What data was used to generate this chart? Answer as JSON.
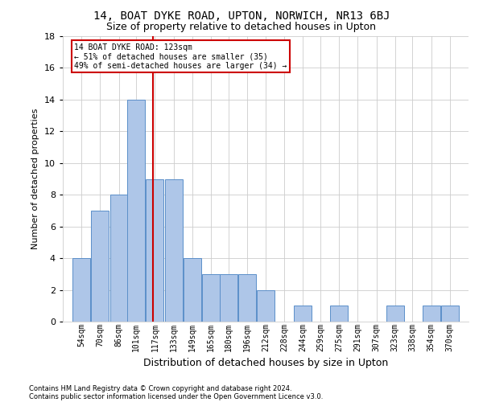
{
  "title1": "14, BOAT DYKE ROAD, UPTON, NORWICH, NR13 6BJ",
  "title2": "Size of property relative to detached houses in Upton",
  "xlabel": "Distribution of detached houses by size in Upton",
  "ylabel": "Number of detached properties",
  "footnote1": "Contains HM Land Registry data © Crown copyright and database right 2024.",
  "footnote2": "Contains public sector information licensed under the Open Government Licence v3.0.",
  "annotation_line1": "14 BOAT DYKE ROAD: 123sqm",
  "annotation_line2": "← 51% of detached houses are smaller (35)",
  "annotation_line3": "49% of semi-detached houses are larger (34) →",
  "property_size": 123,
  "categories": [
    "54sqm",
    "70sqm",
    "86sqm",
    "101sqm",
    "117sqm",
    "133sqm",
    "149sqm",
    "165sqm",
    "180sqm",
    "196sqm",
    "212sqm",
    "228sqm",
    "244sqm",
    "259sqm",
    "275sqm",
    "291sqm",
    "307sqm",
    "323sqm",
    "338sqm",
    "354sqm",
    "370sqm"
  ],
  "bar_values": [
    4,
    7,
    8,
    14,
    9,
    9,
    4,
    3,
    3,
    3,
    2,
    0,
    1,
    0,
    1,
    0,
    0,
    1,
    0,
    1,
    1
  ],
  "bar_left_edges": [
    54,
    70,
    86,
    101,
    117,
    133,
    149,
    165,
    180,
    196,
    212,
    228,
    244,
    259,
    275,
    291,
    307,
    323,
    338,
    354,
    370
  ],
  "bin_width": 16,
  "bar_color": "#aec6e8",
  "bar_edge_color": "#5b8fc9",
  "vline_x": 123,
  "vline_color": "#cc0000",
  "ylim": [
    0,
    18
  ],
  "yticks": [
    0,
    2,
    4,
    6,
    8,
    10,
    12,
    14,
    16,
    18
  ],
  "xlim_left": 46,
  "xlim_right": 394,
  "background_color": "#ffffff",
  "grid_color": "#cccccc",
  "title1_fontsize": 10,
  "title2_fontsize": 9,
  "tick_fontsize": 7,
  "ylabel_fontsize": 8,
  "xlabel_fontsize": 9,
  "annotation_box_color": "#ffffff",
  "annotation_box_edge": "#cc0000",
  "footnote_fontsize": 6
}
